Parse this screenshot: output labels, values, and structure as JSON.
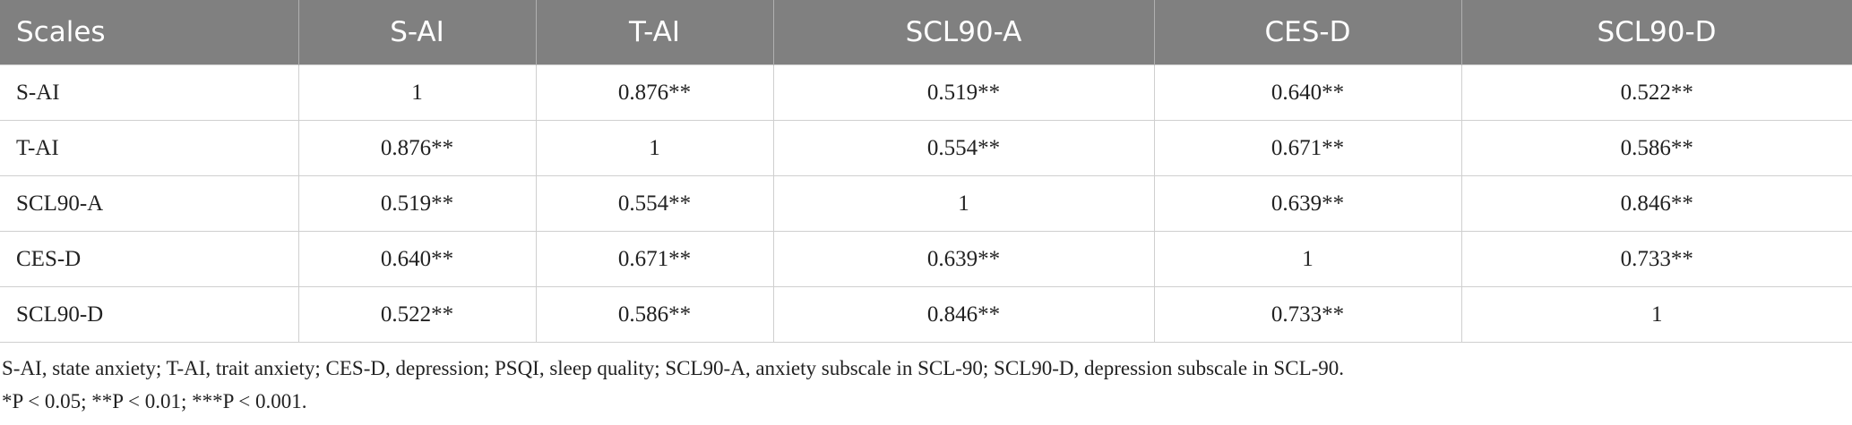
{
  "table": {
    "header": [
      "Scales",
      "S-AI",
      "T-AI",
      "SCL90-A",
      "CES-D",
      "SCL90-D"
    ],
    "rows": [
      [
        "S-AI",
        "1",
        "0.876**",
        "0.519**",
        "0.640**",
        "0.522**"
      ],
      [
        "T-AI",
        "0.876**",
        "1",
        "0.554**",
        "0.671**",
        "0.586**"
      ],
      [
        "SCL90-A",
        "0.519**",
        "0.554**",
        "1",
        "0.639**",
        "0.846**"
      ],
      [
        "CES-D",
        "0.640**",
        "0.671**",
        "0.639**",
        "1",
        "0.733**"
      ],
      [
        "SCL90-D",
        "0.522**",
        "0.586**",
        "0.846**",
        "0.733**",
        "1"
      ]
    ]
  },
  "notes": [
    "S-AI, state anxiety; T-AI, trait anxiety; CES-D, depression; PSQI, sleep quality; SCL90-A, anxiety subscale in SCL-90; SCL90-D, depression subscale in SCL-90.",
    "*P < 0.05; **P < 0.01; ***P < 0.001."
  ]
}
